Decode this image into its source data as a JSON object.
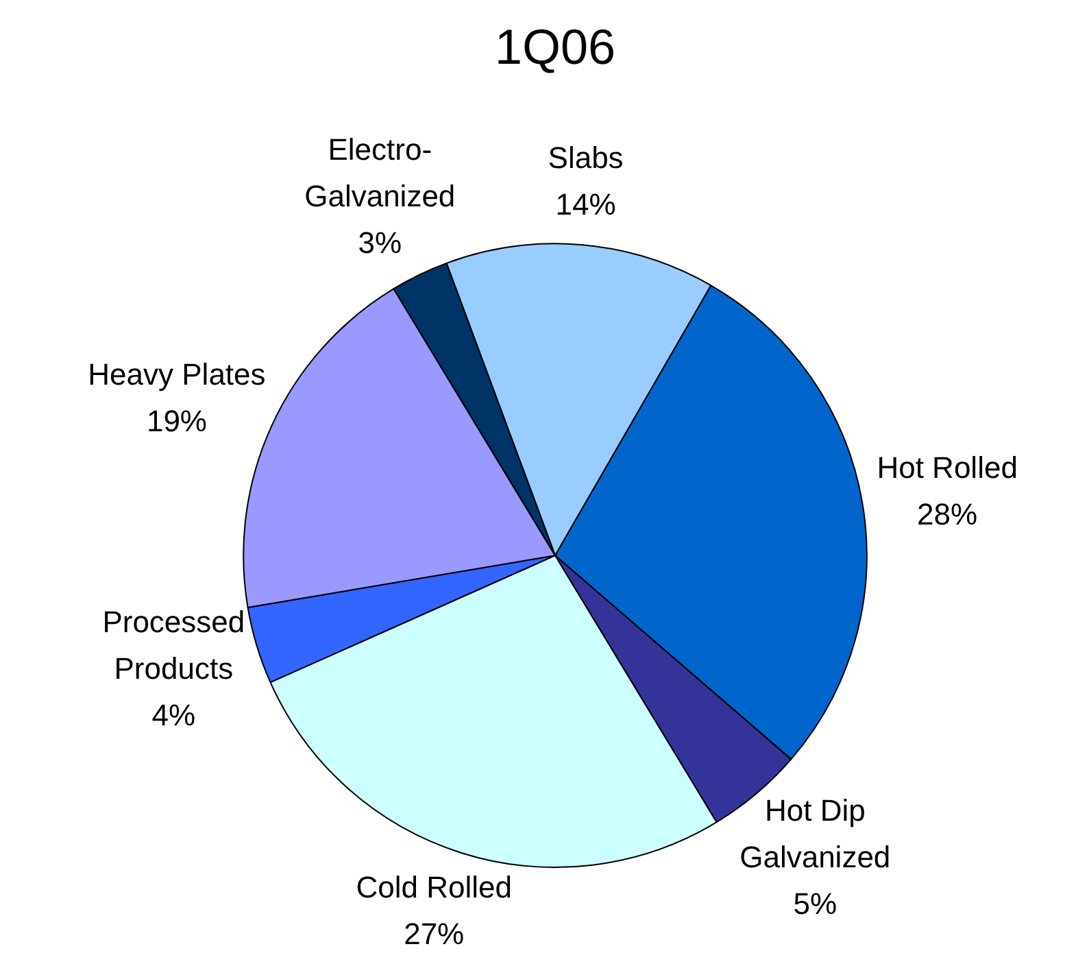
{
  "chart_data": {
    "type": "pie",
    "title": "1Q06",
    "categories": [
      "Slabs",
      "Hot Rolled",
      "Hot Dip Galvanized",
      "Cold Rolled",
      "Processed Products",
      "Heavy Plates",
      "Electro-Galvanized"
    ],
    "values": [
      14,
      28,
      5,
      27,
      4,
      19,
      3
    ],
    "value_labels": [
      "14%",
      "28%",
      "5%",
      "27%",
      "4%",
      "19%",
      "3%"
    ],
    "colors": [
      "#99ccff",
      "#0066cc",
      "#333399",
      "#ccffff",
      "#3366ff",
      "#9999ff",
      "#003366"
    ],
    "legend": false
  }
}
